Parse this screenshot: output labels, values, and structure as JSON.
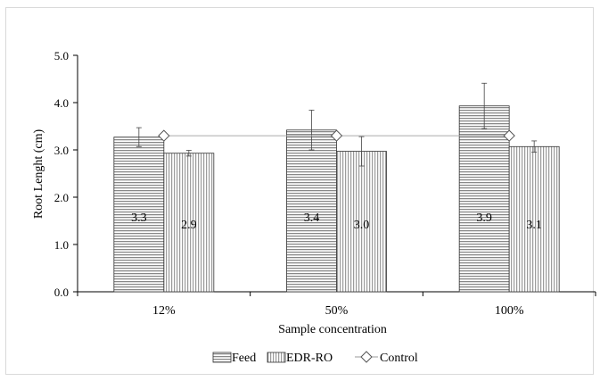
{
  "chart_data": {
    "type": "bar",
    "title": "",
    "xlabel": "Sample concentration",
    "ylabel": "Root Lenght (cm)",
    "ylim": [
      0,
      5
    ],
    "yticks": [
      "0.0",
      "1.0",
      "2.0",
      "3.0",
      "4.0",
      "5.0"
    ],
    "categories": [
      "12%",
      "50%",
      "100%"
    ],
    "series": [
      {
        "name": "Feed",
        "values": [
          3.27,
          3.42,
          3.93
        ],
        "error": [
          0.2,
          0.42,
          0.48
        ],
        "labels": [
          "3.3",
          "3.4",
          "3.9"
        ],
        "pattern": "horizontal-lines"
      },
      {
        "name": "EDR-RO",
        "values": [
          2.93,
          2.97,
          3.07
        ],
        "error": [
          0.06,
          0.31,
          0.12
        ],
        "labels": [
          "2.9",
          "3.0",
          "3.1"
        ],
        "pattern": "vertical-lines"
      }
    ],
    "control": {
      "name": "Control",
      "value": 3.3,
      "marker": "diamond"
    },
    "grid": false,
    "legend_position": "bottom"
  }
}
